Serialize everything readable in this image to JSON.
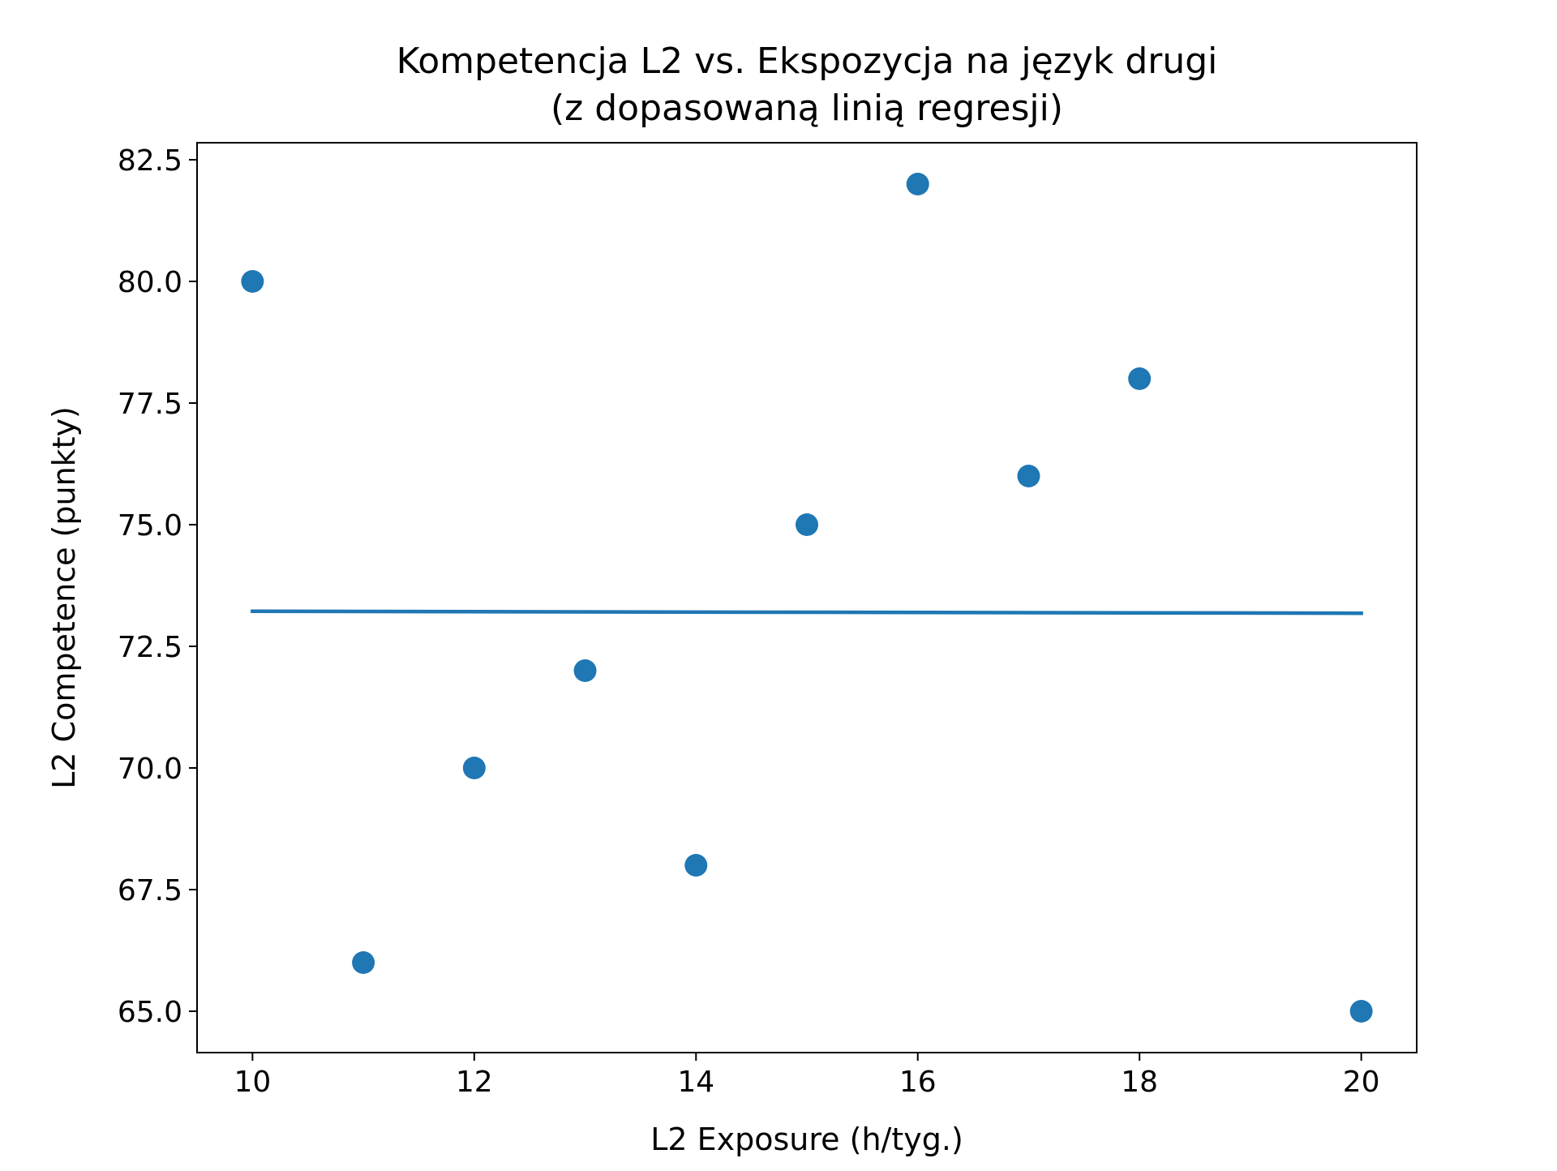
{
  "colors": {
    "series": "#1f77b4",
    "axes": "#000000",
    "background": "#ffffff"
  },
  "chart_data": {
    "type": "scatter",
    "title": [
      "Kompetencja L2 vs. Ekspozycja na język drugi",
      "(z dopasowaną linią regresji)"
    ],
    "xlabel": "L2 Exposure (h/tyg.)",
    "ylabel": "L2 Competence (punkty)",
    "xlim": [
      9.5,
      20.5
    ],
    "ylim": [
      64.15,
      82.85
    ],
    "xticks": [
      10,
      12,
      14,
      16,
      18,
      20
    ],
    "xtick_labels": [
      "10",
      "12",
      "14",
      "16",
      "18",
      "20"
    ],
    "yticks": [
      65.0,
      67.5,
      70.0,
      72.5,
      75.0,
      77.5,
      80.0,
      82.5
    ],
    "ytick_labels": [
      "65.0",
      "67.5",
      "70.0",
      "72.5",
      "75.0",
      "77.5",
      "80.0",
      "82.5"
    ],
    "grid": false,
    "legend": false,
    "series": [
      {
        "type": "scatter",
        "x": [
          10,
          11,
          12,
          13,
          14,
          15,
          16,
          17,
          18,
          20
        ],
        "y": [
          80,
          66,
          70,
          72,
          68,
          75,
          82,
          76,
          78,
          65
        ]
      },
      {
        "type": "line",
        "x": [
          10,
          20
        ],
        "y": [
          73.22,
          73.18
        ]
      }
    ]
  }
}
